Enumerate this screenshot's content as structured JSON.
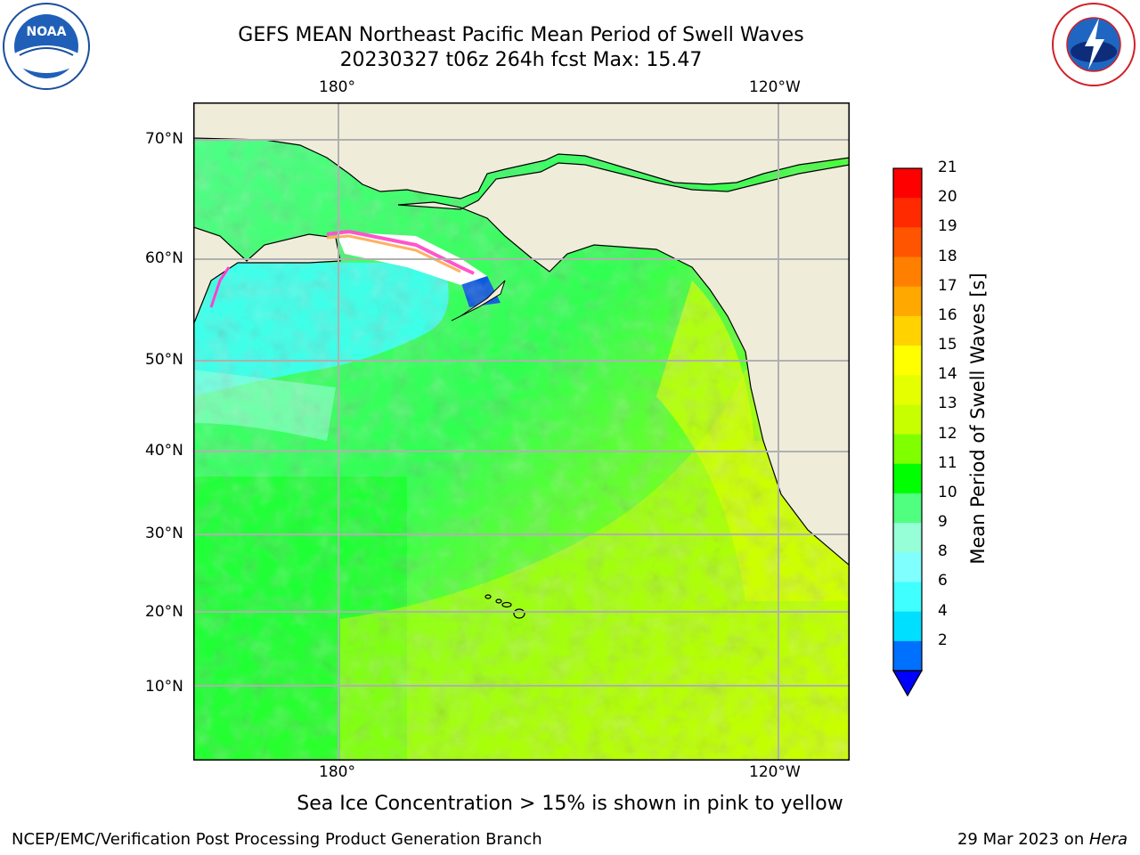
{
  "title": {
    "line1": "GEFS MEAN Northeast Pacific Mean Period of Swell Waves",
    "line2": "20230327 t06z 264h fcst   Max: 15.47"
  },
  "logos": {
    "left": {
      "name": "noara-logo",
      "text": "NOAA"
    },
    "right": {
      "name": "nws-logo",
      "text": "NATIONAL WEATHER SERVICE"
    }
  },
  "map": {
    "lon_ticks_top": [
      "180°",
      "120°W"
    ],
    "lon_ticks_bottom": [
      "180°",
      "120°W"
    ],
    "lat_ticks": [
      "70°N",
      "60°N",
      "50°N",
      "40°N",
      "30°N",
      "20°N",
      "10°N"
    ],
    "land_color": "#efedda",
    "grid_color": "#b0b0b0"
  },
  "colorbar": {
    "label": "Mean Period of Swell Waves [s]",
    "ticks": [
      "21",
      "20",
      "19",
      "18",
      "17",
      "16",
      "15",
      "14",
      "13",
      "12",
      "11",
      "10",
      "9",
      "8",
      "6",
      "4",
      "2"
    ],
    "colors_top_to_bottom": [
      "#ff0000",
      "#ff2a00",
      "#ff5500",
      "#ff7f00",
      "#ffa800",
      "#ffd200",
      "#ffff00",
      "#e6ff00",
      "#c8ff00",
      "#7fff00",
      "#00ff00",
      "#50ff80",
      "#96ffd8",
      "#80ffff",
      "#40ffff",
      "#00dfff",
      "#0070ff"
    ],
    "under_color": "#0000ff"
  },
  "note": "Sea Ice Concentration > 15% is shown in pink to yellow",
  "footer": {
    "left": "NCEP/EMC/Verification Post Processing Product Generation Branch",
    "right_date": "29 Mar 2023 on ",
    "right_host": "Hera"
  }
}
